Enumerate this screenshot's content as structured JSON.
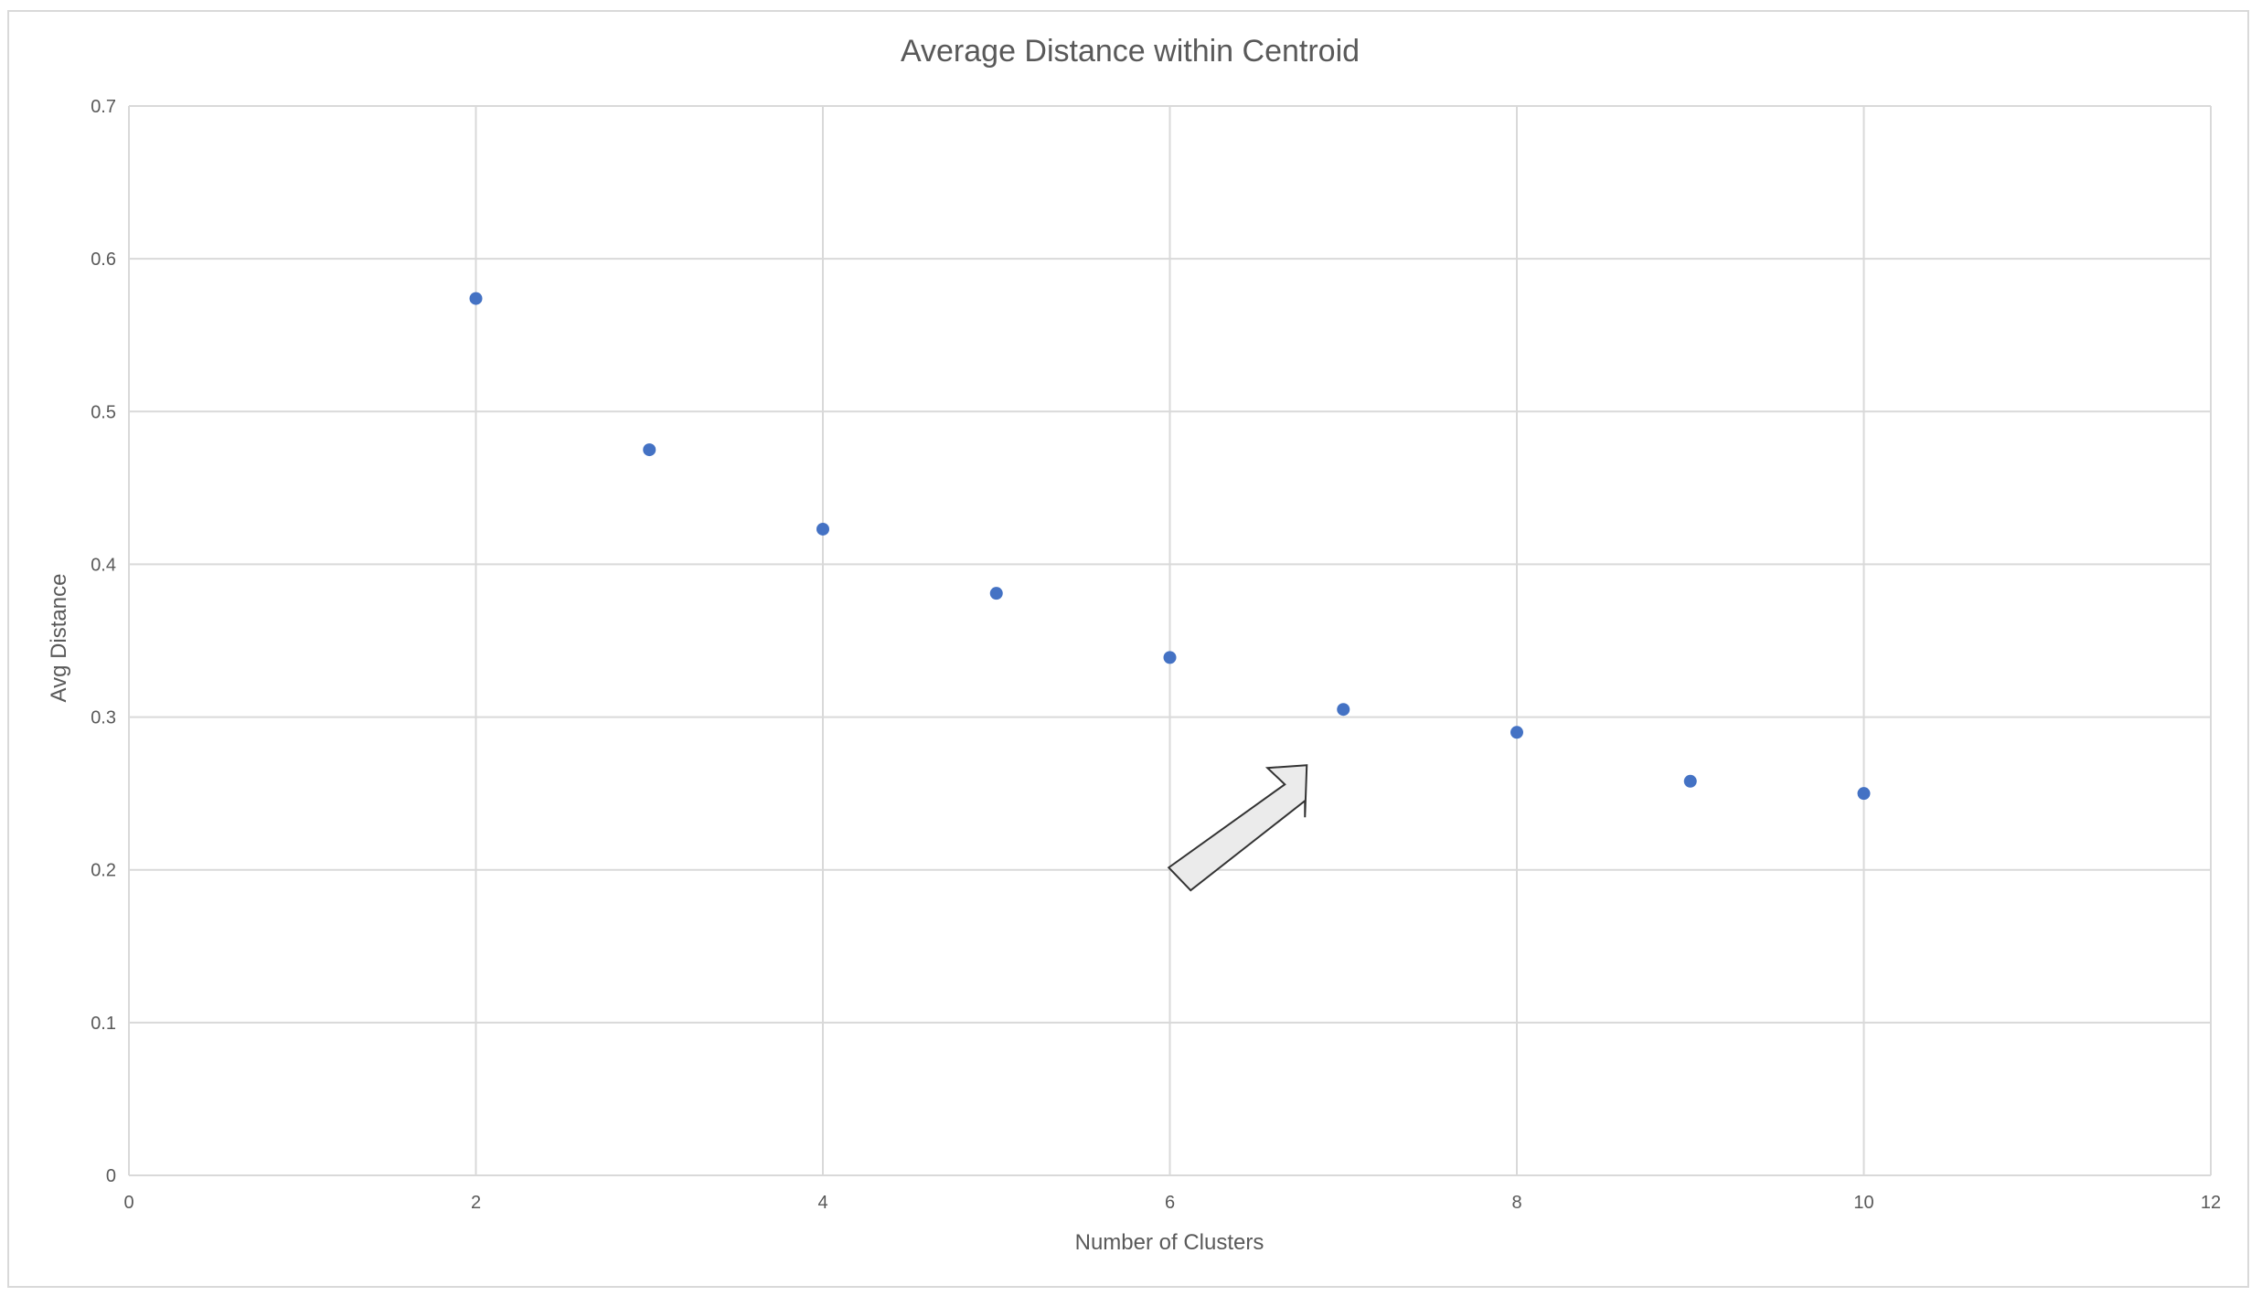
{
  "chart_data": {
    "type": "scatter",
    "title": "Average Distance within Centroid",
    "xlabel": "Number of Clusters",
    "ylabel": "Avg Distance",
    "xlim": [
      0,
      12
    ],
    "ylim": [
      0,
      0.7
    ],
    "xticks": [
      0,
      2,
      4,
      6,
      8,
      10,
      12
    ],
    "xtick_labels": [
      "0",
      "2",
      "4",
      "6",
      "8",
      "10",
      "12"
    ],
    "yticks": [
      0,
      0.1,
      0.2,
      0.3,
      0.4,
      0.5,
      0.6,
      0.7
    ],
    "ytick_labels": [
      "0",
      "0.1",
      "0.2",
      "0.3",
      "0.4",
      "0.5",
      "0.6",
      "0.7"
    ],
    "grid": true,
    "legend": "none",
    "marker_color": "#4472c4",
    "series": [
      {
        "points": [
          {
            "x": 2,
            "y": 0.574
          },
          {
            "x": 3,
            "y": 0.475
          },
          {
            "x": 4,
            "y": 0.423
          },
          {
            "x": 5,
            "y": 0.381
          },
          {
            "x": 6,
            "y": 0.339
          },
          {
            "x": 7,
            "y": 0.305
          },
          {
            "x": 8,
            "y": 0.29
          },
          {
            "x": 9,
            "y": 0.258
          },
          {
            "x": 10,
            "y": 0.25
          }
        ]
      }
    ],
    "annotation": {
      "shape": "block-arrow",
      "points_to": {
        "x": 7,
        "y": 0.305
      },
      "fill": "#ebebeb",
      "stroke": "#333333"
    }
  }
}
